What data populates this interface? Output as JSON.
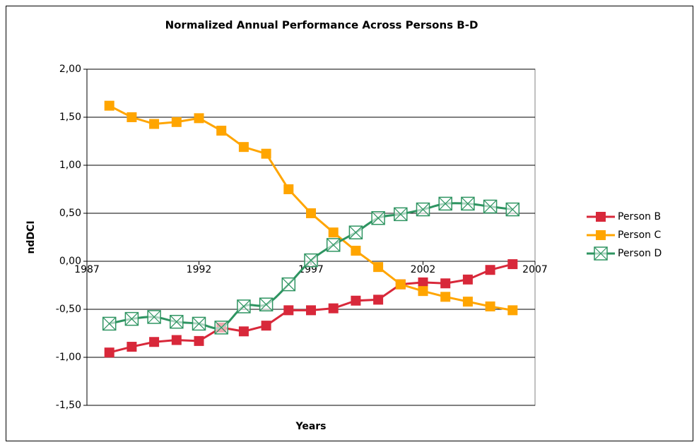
{
  "chart_data": {
    "type": "line",
    "title": "Normalized Annual Performance Across Persons B-D",
    "x_label": "Years",
    "y_label": "ndDCI",
    "x": [
      1988,
      1989,
      1990,
      1991,
      1992,
      1993,
      1994,
      1995,
      1996,
      1997,
      1998,
      1999,
      2000,
      2001,
      2002,
      2003,
      2004,
      2005,
      2006
    ],
    "series": [
      {
        "name": "Person B",
        "color": "#d8283a",
        "marker": "square",
        "smooth": false,
        "values": [
          -0.95,
          -0.89,
          -0.84,
          -0.82,
          -0.83,
          -0.69,
          -0.73,
          -0.67,
          -0.51,
          -0.51,
          -0.49,
          -0.41,
          -0.4,
          -0.24,
          -0.22,
          -0.23,
          -0.19,
          -0.09,
          -0.03
        ]
      },
      {
        "name": "Person C",
        "color": "#ffa500",
        "marker": "square",
        "smooth": false,
        "values": [
          1.62,
          1.5,
          1.43,
          1.45,
          1.49,
          1.36,
          1.19,
          1.12,
          0.75,
          0.5,
          0.3,
          0.11,
          -0.06,
          -0.24,
          -0.31,
          -0.37,
          -0.42,
          -0.47,
          -0.51
        ]
      },
      {
        "name": "Person D",
        "color": "#2e9461",
        "marker": "boxx",
        "smooth": true,
        "values": [
          -0.65,
          -0.6,
          -0.58,
          -0.63,
          -0.65,
          -0.69,
          -0.47,
          -0.45,
          -0.24,
          0.01,
          0.17,
          0.3,
          0.45,
          0.49,
          0.54,
          0.6,
          0.6,
          0.57,
          0.54
        ]
      }
    ],
    "xlim": [
      1987,
      2007
    ],
    "xticks": [
      1987,
      1992,
      1997,
      2002,
      2007
    ],
    "ylim": [
      -1.5,
      2
    ],
    "yticks": [
      {
        "value": -1.5,
        "label": "-1,50"
      },
      {
        "value": -1,
        "label": "-1,00"
      },
      {
        "value": -0.5,
        "label": "-0,50"
      },
      {
        "value": 0,
        "label": "0,00"
      },
      {
        "value": 0.5,
        "label": "0,50"
      },
      {
        "value": 1,
        "label": "1,00"
      },
      {
        "value": 1.5,
        "label": "1,50"
      },
      {
        "value": 2,
        "label": "2,00"
      }
    ],
    "grid": true,
    "legend": "right"
  }
}
